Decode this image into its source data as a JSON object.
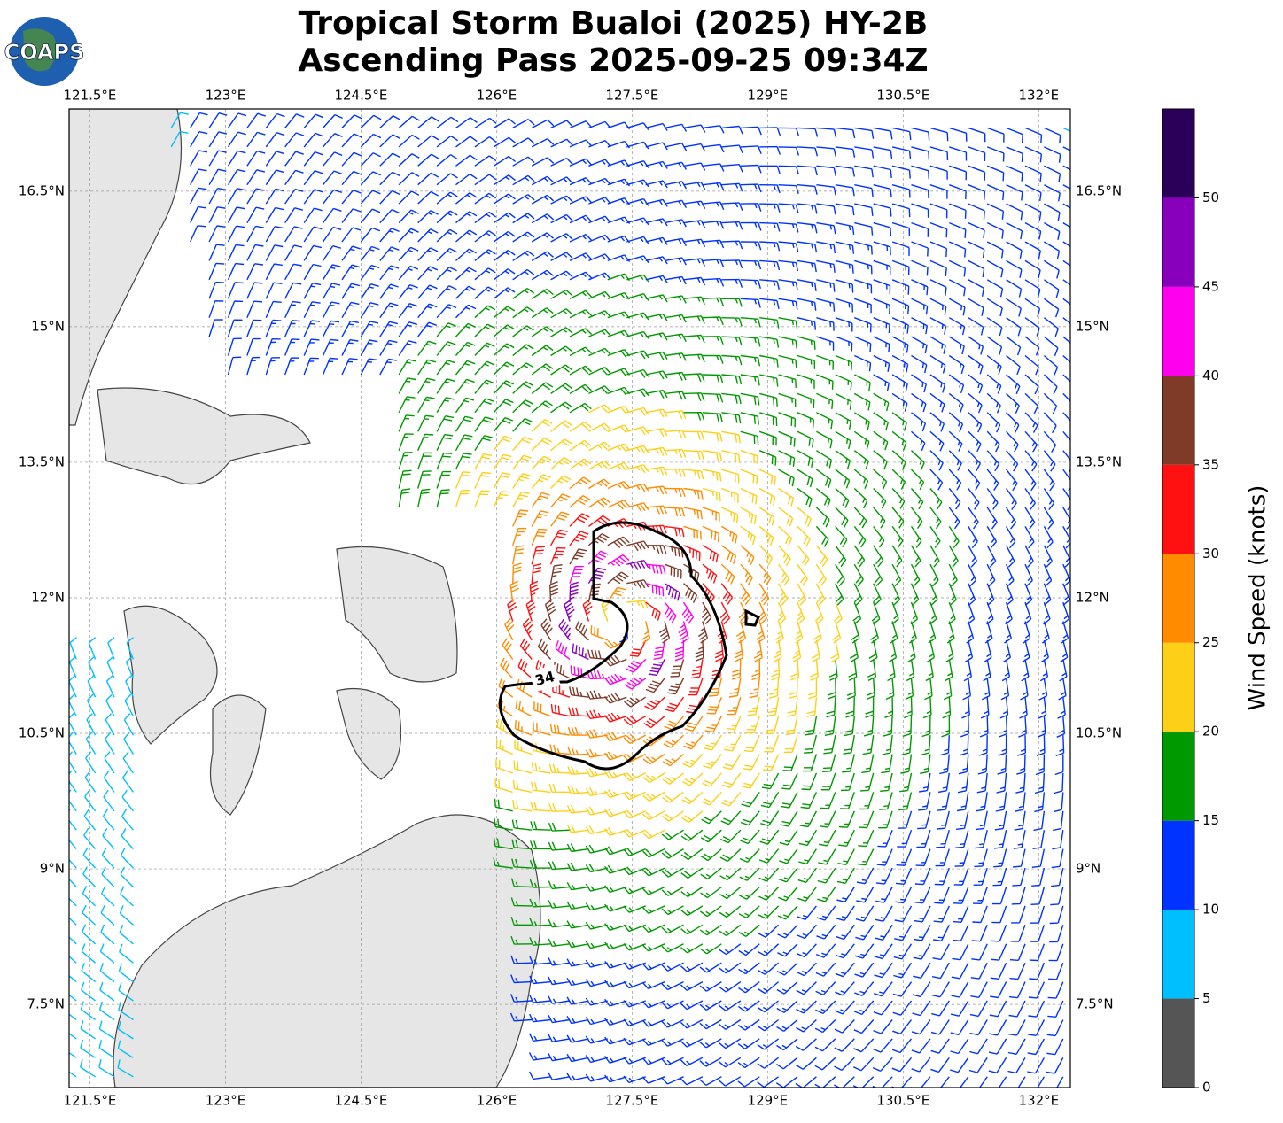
{
  "logo": "COAPS",
  "title": [
    "Tropical Storm Bualoi (2025) HY-2B",
    "Ascending Pass 2025-09-25 09:34Z"
  ],
  "map": {
    "lonlim": [
      121.27,
      132.35
    ],
    "latlim": [
      6.58,
      17.41
    ],
    "lon_ticks": [
      {
        "value": 121.5,
        "label": "121.5°E"
      },
      {
        "value": 123,
        "label": "123°E"
      },
      {
        "value": 124.5,
        "label": "124.5°E"
      },
      {
        "value": 126,
        "label": "126°E"
      },
      {
        "value": 127.5,
        "label": "127.5°E"
      },
      {
        "value": 129,
        "label": "129°E"
      },
      {
        "value": 130.5,
        "label": "130.5°E"
      },
      {
        "value": 132,
        "label": "132°E"
      }
    ],
    "lat_ticks": [
      {
        "value": 16.5,
        "label": "16.5°N"
      },
      {
        "value": 15,
        "label": "15°N"
      },
      {
        "value": 13.5,
        "label": "13.5°N"
      },
      {
        "value": 12,
        "label": "12°N"
      },
      {
        "value": 10.5,
        "label": "10.5°N"
      },
      {
        "value": 9,
        "label": "9°N"
      },
      {
        "value": 7.5,
        "label": "7.5°N"
      }
    ],
    "contour_label": "34"
  },
  "colorbar": {
    "label": "Wind Speed (knots)",
    "lim": [
      0,
      55
    ],
    "ticks": [
      0,
      5,
      10,
      15,
      20,
      25,
      30,
      35,
      40,
      45,
      50
    ],
    "colors": [
      "#555555",
      "#00bfff",
      "#0033ff",
      "#009900",
      "#fdd017",
      "#ff8c00",
      "#ff1111",
      "#7f3a28",
      "#ff00ee",
      "#8800bb",
      "#2a0058"
    ]
  }
}
